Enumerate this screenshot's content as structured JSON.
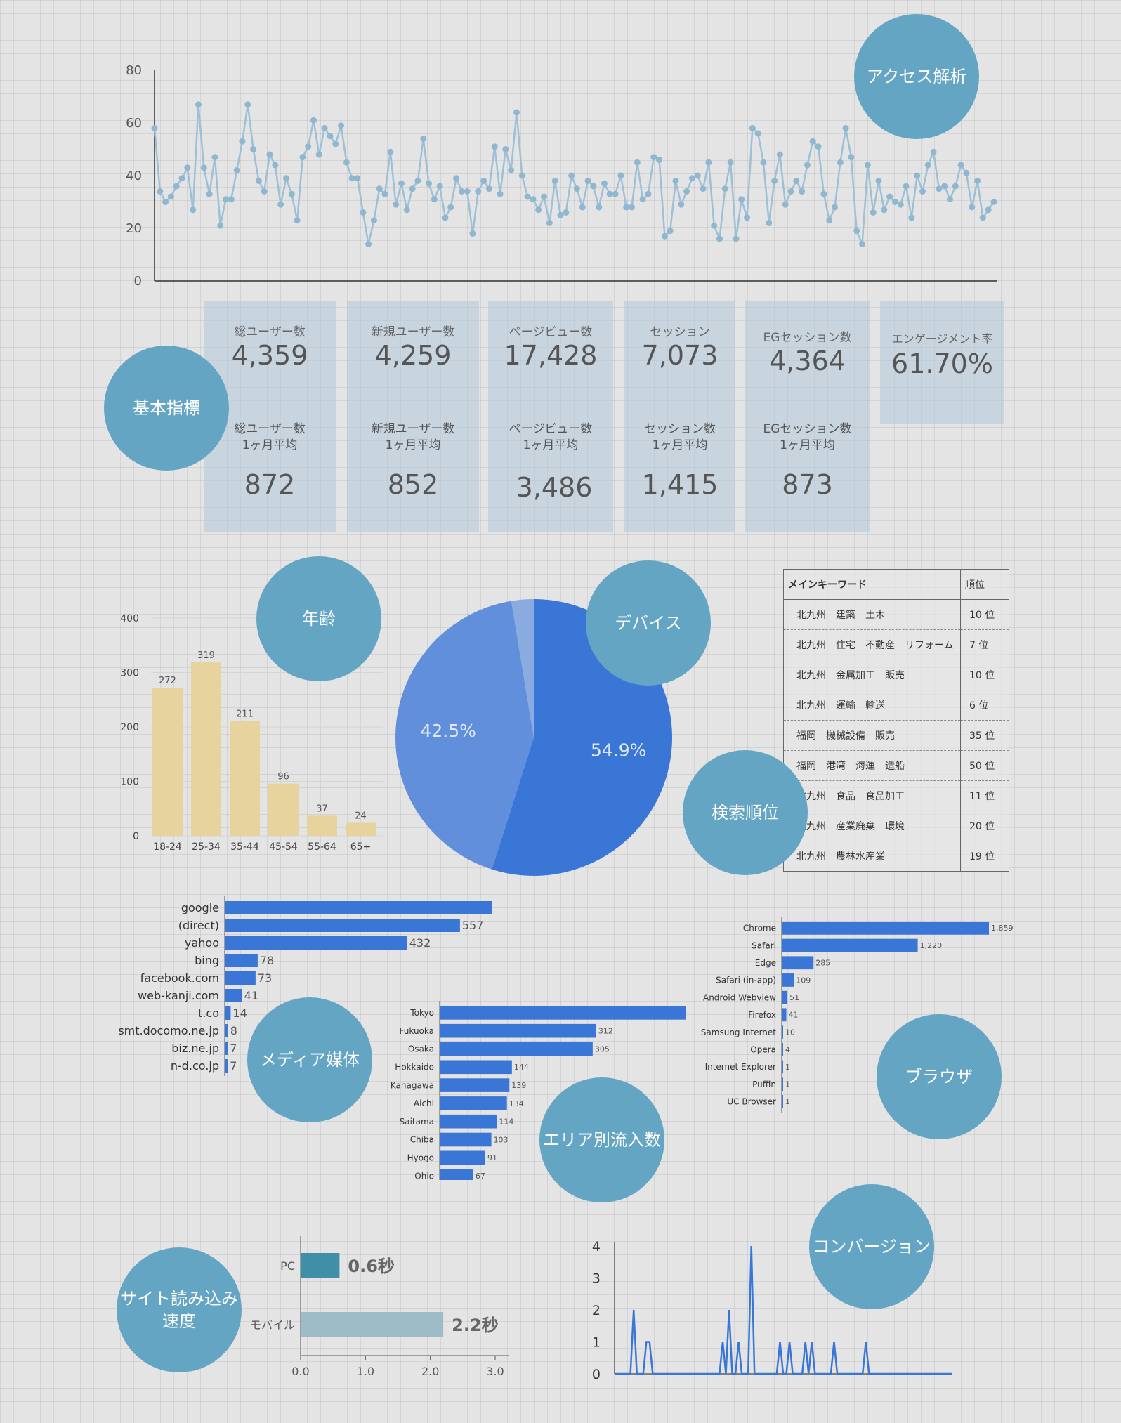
{
  "bubbles": {
    "access": "アクセス解析",
    "basic": "基本指標",
    "age": "年齢",
    "device": "デバイス",
    "rank": "検索順位",
    "media": "メディア媒体",
    "browser": "ブラウザ",
    "area": "エリア別流入数",
    "speed": "サイト読み込み\n速度",
    "conversion": "コンバージョン"
  },
  "metrics": [
    {
      "label": "総ユーザー数",
      "value": "4,359",
      "avg_label": "総ユーザー数\n1ヶ月平均",
      "avg_value": "872"
    },
    {
      "label": "新規ユーザー数",
      "value": "4,259",
      "avg_label": "新規ユーザー数\n1ヶ月平均",
      "avg_value": "852"
    },
    {
      "label": "ページビュー数",
      "value": "17,428",
      "avg_label": "ページビュー数\n1ヶ月平均",
      "avg_value": "3,486"
    },
    {
      "label": "セッション",
      "value": "7,073",
      "avg_label": "セッション数\n1ヶ月平均",
      "avg_value": "1,415"
    },
    {
      "label": "EGセッション数",
      "value": "4,364",
      "avg_label": "EGセッション数\n1ヶ月平均",
      "avg_value": "873"
    },
    {
      "label": "エンゲージメント率",
      "value": "61.70%"
    }
  ],
  "keywords": {
    "header": {
      "keyword": "メインキーワード",
      "rank": "順位"
    },
    "rows": [
      {
        "keyword": "北九州　建築　土木",
        "rank": "10 位"
      },
      {
        "keyword": "北九州　住宅　不動産　リフォーム",
        "rank": "7 位"
      },
      {
        "keyword": "北九州　金属加工　販売",
        "rank": "10 位"
      },
      {
        "keyword": "北九州　運輸　輸送",
        "rank": "6 位"
      },
      {
        "keyword": "福岡　機械設備　販売",
        "rank": "35 位"
      },
      {
        "keyword": "福岡　港湾　海運　造船",
        "rank": "50 位"
      },
      {
        "keyword": "北九州　食品　食品加工",
        "rank": "11 位"
      },
      {
        "keyword": "北九州　産業廃棄　環境",
        "rank": "20 位"
      },
      {
        "keyword": "北九州　農林水産業",
        "rank": "19 位"
      }
    ]
  },
  "chart_data": [
    {
      "id": "access_line",
      "type": "line",
      "ylim": [
        0,
        80
      ],
      "yticks": [
        "0",
        "20",
        "40",
        "60",
        "80"
      ],
      "grid": false,
      "values": [
        58,
        34,
        30,
        32,
        36,
        39,
        43,
        27,
        67,
        43,
        33,
        47,
        21,
        31,
        31,
        42,
        53,
        67,
        50,
        38,
        34,
        48,
        44,
        29,
        39,
        33,
        23,
        47,
        51,
        61,
        48,
        58,
        55,
        52,
        59,
        45,
        39,
        39,
        26,
        14,
        23,
        35,
        33,
        49,
        29,
        37,
        27,
        35,
        38,
        54,
        37,
        31,
        36,
        24,
        28,
        39,
        34,
        34,
        18,
        34,
        38,
        35,
        51,
        33,
        50,
        42,
        64,
        40,
        32,
        31,
        27,
        32,
        22,
        38,
        25,
        26,
        40,
        35,
        28,
        38,
        36,
        28,
        37,
        33,
        33,
        40,
        28,
        28,
        45,
        31,
        33,
        47,
        46,
        17,
        19,
        38,
        29,
        34,
        39,
        40,
        35,
        45,
        21,
        16,
        35,
        45,
        16,
        31,
        24,
        58,
        56,
        45,
        22,
        38,
        48,
        29,
        34,
        38,
        34,
        44,
        53,
        51,
        33,
        23,
        28,
        45,
        58,
        47,
        19,
        14,
        44,
        26,
        38,
        27,
        32,
        30,
        29,
        36,
        24,
        40,
        34,
        44,
        49,
        35,
        36,
        31,
        36,
        44,
        41,
        28,
        38,
        24,
        27,
        30
      ]
    },
    {
      "id": "age_bar",
      "type": "bar",
      "categories": [
        "18-24",
        "25-34",
        "35-44",
        "45-54",
        "55-64",
        "65+"
      ],
      "values": [
        272,
        319,
        211,
        96,
        37,
        24
      ],
      "ylim": [
        0,
        400
      ],
      "yticks": [
        "0",
        "100",
        "200",
        "300",
        "400"
      ],
      "color": "#e7d39e"
    },
    {
      "id": "device_pie",
      "type": "pie",
      "slices": [
        {
          "label": "54.9%",
          "value": 54.9,
          "color": "#3a76d6"
        },
        {
          "label": "42.5%",
          "value": 42.5,
          "color": "#628fdb"
        },
        {
          "value": 2.6,
          "color": "#8aabe0"
        }
      ]
    },
    {
      "id": "media_hbar",
      "type": "bar",
      "orientation": "horizontal",
      "categories": [
        "google",
        "(direct)",
        "yahoo",
        "bing",
        "facebook.com",
        "web-kanji.com",
        "t.co",
        "smt.docomo.ne.jp",
        "biz.ne.jp",
        "n-d.co.jp"
      ],
      "values": [
        810,
        557,
        432,
        78,
        73,
        41,
        14,
        8,
        7,
        7
      ],
      "labels": [
        "",
        "557",
        "432",
        "78",
        "73",
        "41",
        "14",
        "8",
        "7",
        "7"
      ],
      "color": "#3a76d6"
    },
    {
      "id": "area_hbar",
      "type": "bar",
      "orientation": "horizontal",
      "categories": [
        "Tokyo",
        "Fukuoka",
        "Osaka",
        "Hokkaido",
        "Kanagawa",
        "Aichi",
        "Saitama",
        "Chiba",
        "Hyogo",
        "Ohio"
      ],
      "values": [
        490,
        312,
        305,
        144,
        139,
        134,
        114,
        103,
        91,
        67
      ],
      "labels": [
        "",
        "312",
        "305",
        "144",
        "139",
        "134",
        "114",
        "103",
        "91",
        "67"
      ],
      "color": "#3a76d6"
    },
    {
      "id": "browser_hbar",
      "type": "bar",
      "orientation": "horizontal",
      "categories": [
        "Chrome",
        "Safari",
        "Edge",
        "Safari (in-app)",
        "Android Webview",
        "Firefox",
        "Samsung Internet",
        "Opera",
        "Internet Explorer",
        "Puffin",
        "UC Browser"
      ],
      "values": [
        1859,
        1220,
        285,
        109,
        51,
        41,
        10,
        4,
        1,
        1,
        1
      ],
      "labels": [
        "1,859",
        "1,220",
        "285",
        "109",
        "51",
        "41",
        "10",
        "4",
        "1",
        "1",
        "1"
      ],
      "color": "#3a76d6"
    },
    {
      "id": "speed_hbar",
      "type": "bar",
      "orientation": "horizontal",
      "categories": [
        "PC",
        "モバイル"
      ],
      "values": [
        0.6,
        2.2
      ],
      "labels": [
        "0.6秒",
        "2.2秒"
      ],
      "colors": [
        "#3f8fa6",
        "#9ebbc8"
      ],
      "xlim": [
        0,
        3.0
      ],
      "xticks": [
        "0.0",
        "1.0",
        "2.0",
        "3.0"
      ]
    },
    {
      "id": "conversion_line",
      "type": "line",
      "ylim": [
        0,
        4
      ],
      "yticks": [
        "0",
        "1",
        "2",
        "3",
        "4"
      ],
      "values": [
        0,
        0,
        0,
        0,
        0,
        0,
        2,
        0,
        0,
        0,
        1,
        1,
        0,
        0,
        0,
        0,
        0,
        0,
        0,
        0,
        0,
        0,
        0,
        0,
        0,
        0,
        0,
        0,
        0,
        0,
        0,
        0,
        0,
        0,
        1,
        0,
        2,
        0,
        0,
        1,
        0,
        0,
        0,
        4,
        0,
        0,
        0,
        0,
        0,
        0,
        0,
        0,
        1,
        0,
        0,
        1,
        0,
        0,
        0,
        0,
        1,
        0,
        1,
        0,
        0,
        0,
        0,
        0,
        0,
        1,
        0,
        0,
        0,
        0,
        0,
        0,
        0,
        0,
        0,
        1,
        0,
        0,
        0,
        0,
        0,
        0,
        0,
        0,
        0,
        0,
        0,
        0,
        0,
        0,
        0,
        0,
        0,
        0,
        0,
        0,
        0,
        0,
        0,
        0,
        0,
        0,
        0
      ]
    }
  ]
}
